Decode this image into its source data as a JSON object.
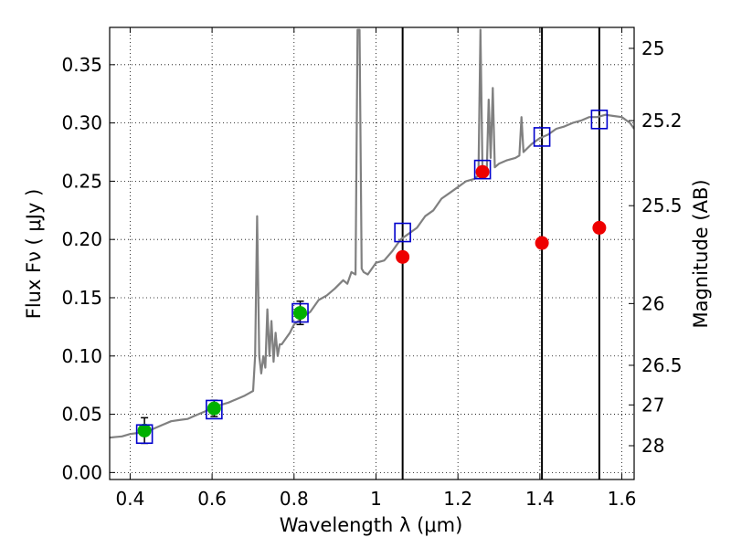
{
  "chart_data": {
    "type": "line",
    "xlabel": "Wavelength  λ (μm)",
    "ylabel": "Flux  Fν  ( μJy )",
    "y2label": "Magnitude (AB)",
    "xlim": [
      0.35,
      1.63
    ],
    "ylim": [
      -0.006,
      0.382
    ],
    "grid": true,
    "x_ticks": [
      0.4,
      0.6,
      0.8,
      1.0,
      1.2,
      1.4,
      1.6
    ],
    "x_tick_labels": [
      "0.4",
      "0.6",
      "0.8",
      "1",
      "1.2",
      "1.4",
      "1.6"
    ],
    "y_ticks": [
      0.0,
      0.05,
      0.1,
      0.15,
      0.2,
      0.25,
      0.3,
      0.35
    ],
    "y_tick_labels": [
      "0.00",
      "0.05",
      "0.10",
      "0.15",
      "0.20",
      "0.25",
      "0.30",
      "0.35"
    ],
    "y2_ticks": [
      {
        "label": "25",
        "flux": 0.364
      },
      {
        "label": "25.2",
        "flux": 0.302
      },
      {
        "label": "25.5",
        "flux": 0.229
      },
      {
        "label": "26",
        "flux": 0.145
      },
      {
        "label": "26.5",
        "flux": 0.092
      },
      {
        "label": "27",
        "flux": 0.058
      },
      {
        "label": "28",
        "flux": 0.023
      }
    ],
    "vertical_lines": [
      1.065,
      1.405,
      1.545
    ],
    "spectrum": {
      "color": "#808080",
      "x": [
        0.35,
        0.38,
        0.4,
        0.42,
        0.44,
        0.46,
        0.48,
        0.5,
        0.52,
        0.54,
        0.56,
        0.58,
        0.6,
        0.62,
        0.64,
        0.66,
        0.68,
        0.69,
        0.7,
        0.705,
        0.71,
        0.715,
        0.72,
        0.725,
        0.73,
        0.735,
        0.74,
        0.745,
        0.75,
        0.755,
        0.76,
        0.765,
        0.77,
        0.78,
        0.79,
        0.8,
        0.82,
        0.84,
        0.86,
        0.88,
        0.9,
        0.92,
        0.93,
        0.94,
        0.95,
        0.955,
        0.96,
        0.965,
        0.97,
        0.98,
        1.0,
        1.02,
        1.04,
        1.06,
        1.08,
        1.1,
        1.12,
        1.14,
        1.16,
        1.18,
        1.2,
        1.22,
        1.24,
        1.25,
        1.255,
        1.26,
        1.265,
        1.27,
        1.275,
        1.28,
        1.285,
        1.29,
        1.3,
        1.32,
        1.34,
        1.35,
        1.355,
        1.36,
        1.38,
        1.4,
        1.42,
        1.44,
        1.46,
        1.48,
        1.5,
        1.52,
        1.54,
        1.56,
        1.58,
        1.6,
        1.62,
        1.63
      ],
      "y": [
        0.03,
        0.031,
        0.033,
        0.034,
        0.035,
        0.038,
        0.041,
        0.044,
        0.045,
        0.046,
        0.049,
        0.052,
        0.055,
        0.058,
        0.06,
        0.063,
        0.066,
        0.068,
        0.07,
        0.1,
        0.22,
        0.1,
        0.085,
        0.1,
        0.09,
        0.14,
        0.1,
        0.13,
        0.095,
        0.12,
        0.1,
        0.11,
        0.11,
        0.115,
        0.12,
        0.127,
        0.133,
        0.138,
        0.148,
        0.152,
        0.158,
        0.165,
        0.162,
        0.172,
        0.17,
        0.38,
        0.38,
        0.175,
        0.172,
        0.17,
        0.18,
        0.182,
        0.19,
        0.2,
        0.205,
        0.21,
        0.22,
        0.225,
        0.235,
        0.24,
        0.245,
        0.25,
        0.252,
        0.255,
        0.38,
        0.255,
        0.26,
        0.255,
        0.32,
        0.27,
        0.33,
        0.262,
        0.265,
        0.268,
        0.27,
        0.272,
        0.305,
        0.275,
        0.282,
        0.287,
        0.29,
        0.295,
        0.297,
        0.3,
        0.302,
        0.305,
        0.305,
        0.307,
        0.306,
        0.305,
        0.3,
        0.295
      ]
    },
    "series": [
      {
        "marker": "circle",
        "color": "#00b000",
        "x": [
          0.435,
          0.605,
          0.815
        ],
        "y": [
          0.036,
          0.055,
          0.137
        ],
        "yerr": [
          0.011,
          0.007,
          0.01
        ]
      },
      {
        "marker": "square-open",
        "color": "#0000cc",
        "x": [
          0.435,
          0.605,
          0.815,
          1.065,
          1.26,
          1.405,
          1.545
        ],
        "y": [
          0.033,
          0.054,
          0.137,
          0.206,
          0.26,
          0.288,
          0.303
        ]
      },
      {
        "marker": "circle",
        "color": "#ee0000",
        "x": [
          1.065,
          1.26,
          1.405,
          1.545
        ],
        "y": [
          0.185,
          0.258,
          0.197,
          0.21
        ]
      }
    ]
  }
}
